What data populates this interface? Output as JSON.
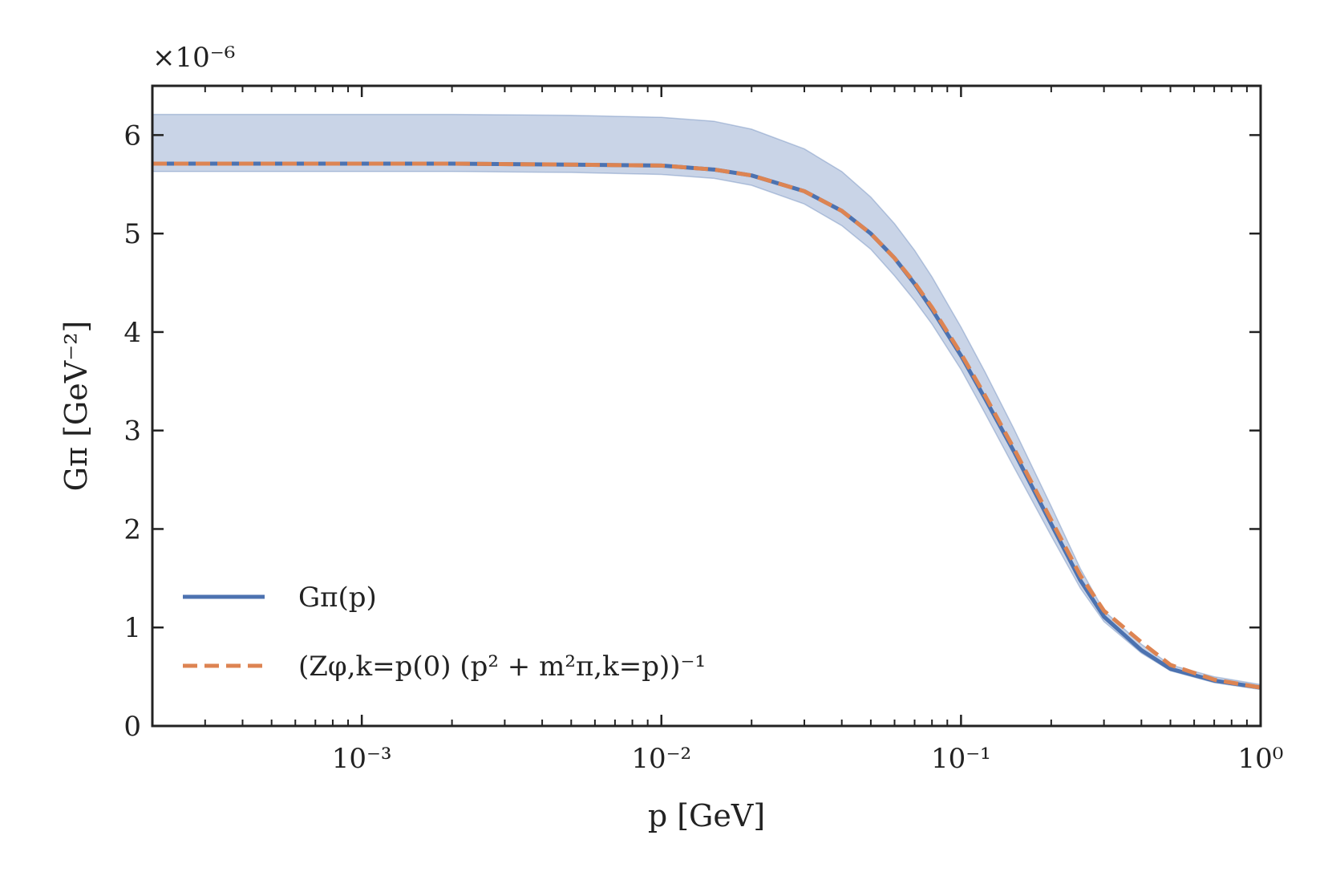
{
  "chart_data": {
    "type": "line",
    "xscale": "log",
    "xlim": [
      0.0002,
      1.0
    ],
    "ylim": [
      0,
      6.5
    ],
    "y_multiplier": "×10⁻⁶",
    "xlabel": "p [GeV]",
    "ylabel": "Gπ [GeV⁻²]",
    "grid": false,
    "legend_position": "lower-left",
    "x_tick_labels": [
      {
        "value": 0.001,
        "label": "10⁻³"
      },
      {
        "value": 0.01,
        "label": "10⁻²"
      },
      {
        "value": 0.1,
        "label": "10⁻¹"
      },
      {
        "value": 1.0,
        "label": "10⁰"
      }
    ],
    "y_ticks": [
      {
        "value": 0,
        "label": "0"
      },
      {
        "value": 1,
        "label": "1"
      },
      {
        "value": 2,
        "label": "2"
      },
      {
        "value": 3,
        "label": "3"
      },
      {
        "value": 4,
        "label": "4"
      },
      {
        "value": 5,
        "label": "5"
      },
      {
        "value": 6,
        "label": "6"
      }
    ],
    "x": [
      0.0002,
      0.0005,
      0.001,
      0.002,
      0.005,
      0.01,
      0.015,
      0.02,
      0.03,
      0.04,
      0.05,
      0.06,
      0.07,
      0.08,
      0.1,
      0.12,
      0.15,
      0.2,
      0.25,
      0.3,
      0.4,
      0.5,
      0.7,
      1.0
    ],
    "band": {
      "color": "#4c72b0",
      "upper": [
        6.21,
        6.21,
        6.21,
        6.21,
        6.2,
        6.18,
        6.14,
        6.06,
        5.86,
        5.63,
        5.37,
        5.1,
        4.83,
        4.56,
        4.05,
        3.6,
        3.02,
        2.23,
        1.6,
        1.17,
        0.83,
        0.62,
        0.5,
        0.42
      ],
      "lower": [
        5.63,
        5.63,
        5.63,
        5.63,
        5.62,
        5.6,
        5.56,
        5.49,
        5.3,
        5.08,
        4.84,
        4.57,
        4.32,
        4.08,
        3.62,
        3.18,
        2.63,
        1.93,
        1.4,
        1.06,
        0.74,
        0.56,
        0.44,
        0.37
      ]
    },
    "series": [
      {
        "name": "Gπ(p)",
        "color": "#4c72b0",
        "style": "solid",
        "values": [
          5.71,
          5.71,
          5.71,
          5.71,
          5.7,
          5.69,
          5.65,
          5.59,
          5.43,
          5.23,
          5.0,
          4.75,
          4.49,
          4.23,
          3.76,
          3.33,
          2.79,
          2.05,
          1.48,
          1.11,
          0.77,
          0.58,
          0.46,
          0.39
        ]
      },
      {
        "name": "(Zφ,k=p(0) (p² + m²π,k=p))⁻¹",
        "color": "#dd8452",
        "style": "dashed",
        "values": [
          5.71,
          5.71,
          5.71,
          5.71,
          5.7,
          5.69,
          5.65,
          5.59,
          5.43,
          5.23,
          5.0,
          4.75,
          4.5,
          4.25,
          3.78,
          3.36,
          2.82,
          2.09,
          1.53,
          1.17,
          0.85,
          0.62,
          0.47,
          0.39
        ]
      }
    ]
  }
}
